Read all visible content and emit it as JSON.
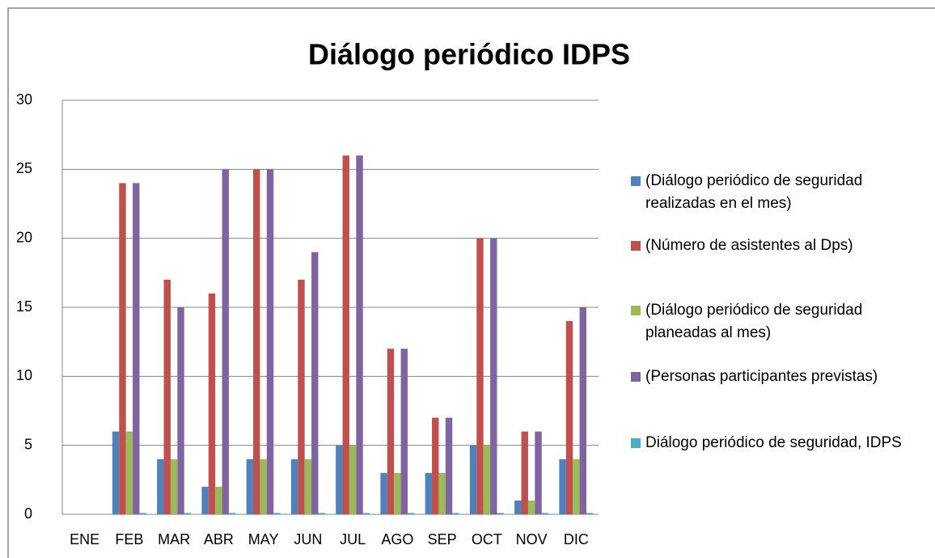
{
  "chart_data": {
    "type": "bar",
    "title": "Diálogo periódico IDPS",
    "categories": [
      "ENE",
      "FEB",
      "MAR",
      "ABR",
      "MAY",
      "JUN",
      "JUL",
      "AGO",
      "SEP",
      "OCT",
      "NOV",
      "DIC"
    ],
    "series": [
      {
        "name": "(Diálogo periódico de seguridad realizadas en el mes)",
        "color": "#4f81bd",
        "values": [
          0,
          6,
          4,
          2,
          4,
          4,
          5,
          3,
          3,
          5,
          1,
          4
        ]
      },
      {
        "name": "(Número de asistentes al Dps)",
        "color": "#c0504d",
        "values": [
          0,
          24,
          17,
          16,
          25,
          17,
          26,
          12,
          7,
          20,
          6,
          14
        ]
      },
      {
        "name": "(Diálogo periódico de seguridad planeadas al mes)",
        "color": "#9bbb59",
        "values": [
          0,
          6,
          4,
          2,
          4,
          4,
          5,
          3,
          3,
          5,
          1,
          4
        ]
      },
      {
        "name": "(Personas participantes previstas)",
        "color": "#8064a2",
        "values": [
          0,
          24,
          15,
          25,
          25,
          19,
          26,
          12,
          7,
          20,
          6,
          15
        ]
      },
      {
        "name": "Diálogo periódico de seguridad, IDPS",
        "color": "#4bacc6",
        "values": [
          0,
          0.1,
          0.1,
          0.1,
          0.1,
          0.1,
          0.1,
          0.1,
          0.1,
          0.1,
          0.1,
          0.1
        ]
      }
    ],
    "ylim": [
      0,
      30
    ],
    "yticks": [
      0,
      5,
      10,
      15,
      20,
      25,
      30
    ],
    "grid": true,
    "legend": "right"
  }
}
